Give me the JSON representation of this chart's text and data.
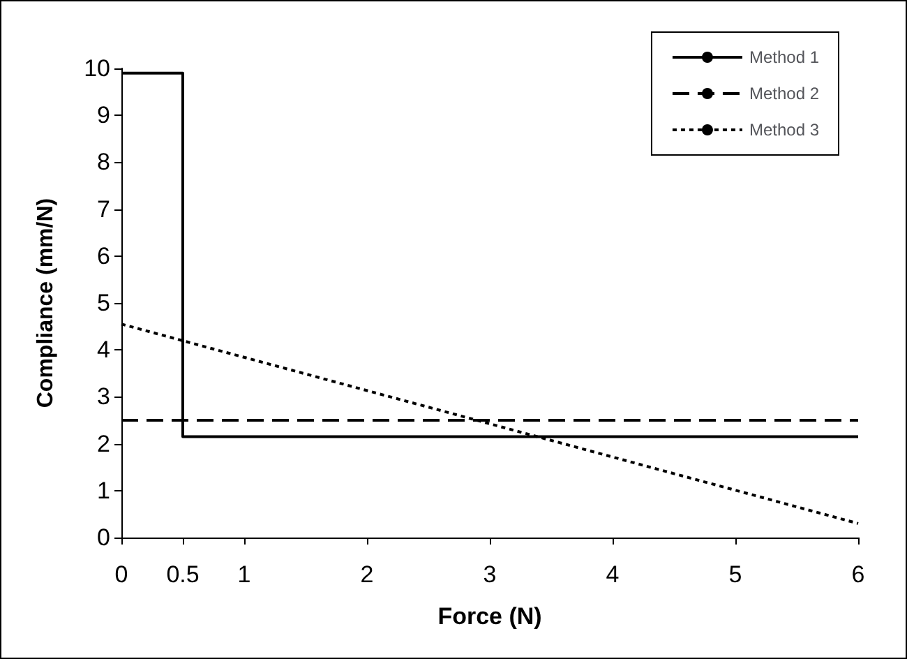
{
  "chart_data": {
    "type": "line",
    "xlabel": "Force (N)",
    "ylabel": "Compliance (mm/N)",
    "xlim": [
      0,
      6
    ],
    "xticks": [
      0,
      0.5,
      1,
      2,
      3,
      4,
      5,
      6
    ],
    "ylim": [
      0,
      10
    ],
    "yticks": [
      0,
      1,
      2,
      3,
      4,
      5,
      6,
      7,
      8,
      9,
      10
    ],
    "grid": false,
    "legend": "top right",
    "marker": "none",
    "series": [
      {
        "name": "Method 1",
        "color": "#000000",
        "line_style": "solid",
        "x": [
          0,
          0.5,
          0.5,
          6
        ],
        "values": [
          9.9,
          9.9,
          2.15,
          2.15
        ]
      },
      {
        "name": "Method 2",
        "color": "#000000",
        "line_style": "dashed",
        "x": [
          0,
          6
        ],
        "values": [
          2.5,
          2.5
        ]
      },
      {
        "name": "Method 3",
        "color": "#000000",
        "line_style": "dotted",
        "x": [
          0,
          6
        ],
        "values": [
          4.55,
          0.3
        ]
      }
    ]
  }
}
